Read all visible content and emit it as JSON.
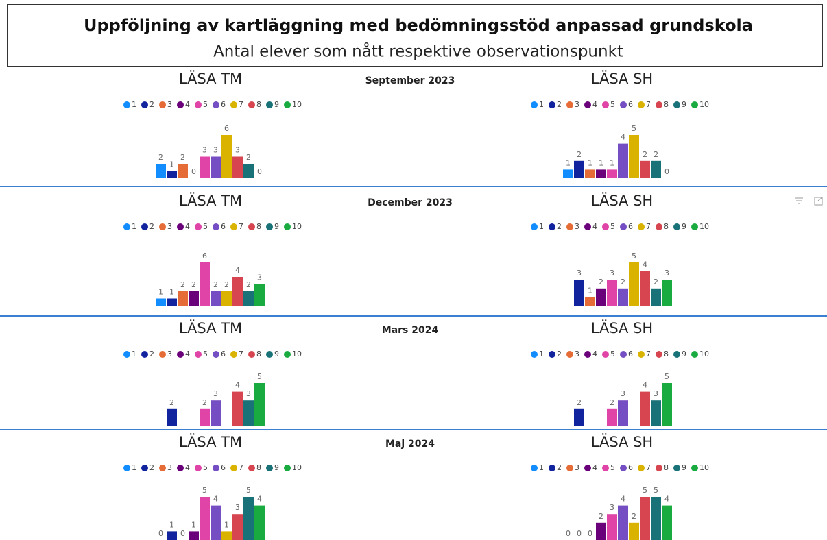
{
  "header": {
    "title": "Uppföljning av kartläggning med bedömningsstöd anpassad grundskola",
    "subtitle": "Antal elever som nått respektive observationspunkt"
  },
  "periods": [
    "September 2023",
    "December 2023",
    "Mars 2024",
    "Maj 2024"
  ],
  "chart_data": [
    {
      "type": "bar",
      "title": "LÄSA TM",
      "categories": [
        "1",
        "2",
        "3",
        "4",
        "5",
        "6",
        "7",
        "8",
        "9",
        "10"
      ],
      "colors": [
        "#118DFF",
        "#12239E",
        "#E66C37",
        "#6B007B",
        "#E044A7",
        "#744EC2",
        "#D9B300",
        "#D64550",
        "#197278",
        "#1AAB40"
      ],
      "values": [
        2,
        1,
        2,
        0,
        3,
        3,
        6,
        3,
        2,
        0
      ]
    },
    {
      "type": "bar",
      "title": "LÄSA SH",
      "categories": [
        "1",
        "2",
        "3",
        "4",
        "5",
        "6",
        "7",
        "8",
        "9",
        "10"
      ],
      "colors": [
        "#118DFF",
        "#12239E",
        "#E66C37",
        "#6B007B",
        "#E044A7",
        "#744EC2",
        "#D9B300",
        "#D64550",
        "#197278",
        "#1AAB40"
      ],
      "values": [
        1,
        2,
        1,
        1,
        1,
        4,
        5,
        2,
        2,
        0
      ]
    },
    {
      "type": "bar",
      "title": "LÄSA TM",
      "categories": [
        "1",
        "2",
        "3",
        "4",
        "5",
        "6",
        "7",
        "8",
        "9",
        "10"
      ],
      "colors": [
        "#118DFF",
        "#12239E",
        "#E66C37",
        "#6B007B",
        "#E044A7",
        "#744EC2",
        "#D9B300",
        "#D64550",
        "#197278",
        "#1AAB40"
      ],
      "values": [
        1,
        1,
        2,
        2,
        6,
        2,
        2,
        4,
        2,
        3
      ]
    },
    {
      "type": "bar",
      "title": "LÄSA SH",
      "categories": [
        "1",
        "2",
        "3",
        "4",
        "5",
        "6",
        "7",
        "8",
        "9",
        "10"
      ],
      "colors": [
        "#118DFF",
        "#12239E",
        "#E66C37",
        "#6B007B",
        "#E044A7",
        "#744EC2",
        "#D9B300",
        "#D64550",
        "#197278",
        "#1AAB40"
      ],
      "values": [
        null,
        3,
        1,
        2,
        3,
        2,
        5,
        4,
        2,
        3
      ]
    },
    {
      "type": "bar",
      "title": "LÄSA TM",
      "categories": [
        "1",
        "2",
        "3",
        "4",
        "5",
        "6",
        "7",
        "8",
        "9",
        "10"
      ],
      "colors": [
        "#118DFF",
        "#12239E",
        "#E66C37",
        "#6B007B",
        "#E044A7",
        "#744EC2",
        "#D9B300",
        "#D64550",
        "#197278",
        "#1AAB40"
      ],
      "values": [
        null,
        2,
        null,
        null,
        2,
        3,
        null,
        4,
        3,
        5
      ]
    },
    {
      "type": "bar",
      "title": "LÄSA SH",
      "categories": [
        "1",
        "2",
        "3",
        "4",
        "5",
        "6",
        "7",
        "8",
        "9",
        "10"
      ],
      "colors": [
        "#118DFF",
        "#12239E",
        "#E66C37",
        "#6B007B",
        "#E044A7",
        "#744EC2",
        "#D9B300",
        "#D64550",
        "#197278",
        "#1AAB40"
      ],
      "values": [
        null,
        2,
        null,
        null,
        2,
        3,
        null,
        4,
        3,
        5
      ]
    },
    {
      "type": "bar",
      "title": "LÄSA TM",
      "categories": [
        "1",
        "2",
        "3",
        "4",
        "5",
        "6",
        "7",
        "8",
        "9",
        "10"
      ],
      "colors": [
        "#118DFF",
        "#12239E",
        "#E66C37",
        "#6B007B",
        "#E044A7",
        "#744EC2",
        "#D9B300",
        "#D64550",
        "#197278",
        "#1AAB40"
      ],
      "values": [
        0,
        1,
        0,
        1,
        5,
        4,
        1,
        3,
        5,
        4
      ]
    },
    {
      "type": "bar",
      "title": "LÄSA SH",
      "categories": [
        "1",
        "2",
        "3",
        "4",
        "5",
        "6",
        "7",
        "8",
        "9",
        "10"
      ],
      "colors": [
        "#118DFF",
        "#12239E",
        "#E66C37",
        "#6B007B",
        "#E044A7",
        "#744EC2",
        "#D9B300",
        "#D64550",
        "#197278",
        "#1AAB40"
      ],
      "values": [
        0,
        0,
        0,
        2,
        3,
        4,
        2,
        5,
        5,
        4
      ]
    }
  ]
}
